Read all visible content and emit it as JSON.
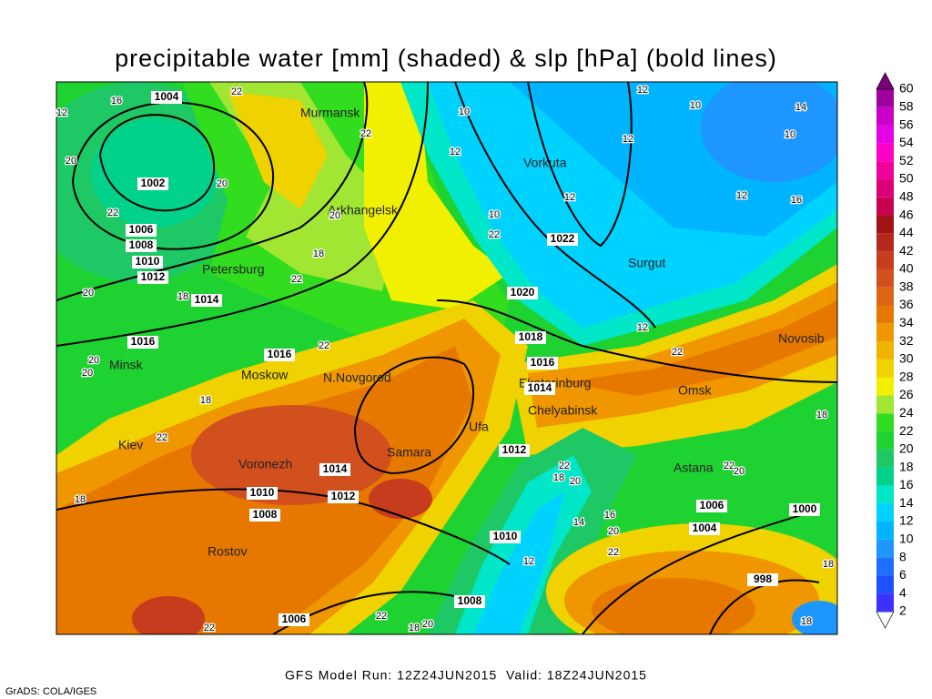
{
  "title": "precipitable water [mm] (shaded) & slp [hPa] (bold lines)",
  "footer": "GFS Model Run: 12Z24JUN2015  Valid: 18Z24JUN2015",
  "credit": "GrADS: COLA/IGES",
  "colorbar": {
    "levels": [
      2,
      4,
      6,
      8,
      10,
      12,
      14,
      16,
      18,
      20,
      22,
      24,
      26,
      28,
      30,
      32,
      34,
      36,
      38,
      40,
      42,
      44,
      46,
      48,
      50,
      52,
      54,
      56,
      58,
      60
    ],
    "colors": [
      "#ffffff",
      "#3c32ff",
      "#1e50ff",
      "#1e6eff",
      "#1e96ff",
      "#00b4ff",
      "#00d2ff",
      "#00e6c8",
      "#00d28c",
      "#1ec864",
      "#1ed232",
      "#32dc1e",
      "#a0e632",
      "#f0f000",
      "#f0d200",
      "#f0b400",
      "#f09600",
      "#e67800",
      "#dc6414",
      "#d2501e",
      "#c83c1e",
      "#b4281e",
      "#a01414",
      "#c80050",
      "#dc0078",
      "#f0009b",
      "#ff00c8",
      "#e600e6",
      "#c800c8",
      "#a000a0",
      "#780078"
    ]
  },
  "cities": [
    "Murmansk",
    "Arkhangelsk",
    "Vorkuta",
    "Surgut",
    "Petersburg",
    "Minsk",
    "Moskow",
    "N.Novgorod",
    "Ekaterinburg",
    "Chelyabinsk",
    "Omsk",
    "Novosib",
    "Kiev",
    "Voronezh",
    "Samara",
    "Ufa",
    "Astana",
    "Rostov"
  ],
  "isobar_labels": [
    1004,
    1002,
    1006,
    1008,
    1010,
    1012,
    1014,
    1016,
    1016,
    1022,
    1020,
    1018,
    1016,
    1014,
    1012,
    1014,
    1012,
    1010,
    1008,
    1010,
    1008,
    1006,
    1006,
    1004,
    1000,
    998
  ],
  "contour_labels": [
    12,
    16,
    22,
    20,
    22,
    20,
    22,
    10,
    12,
    12,
    10,
    14,
    10,
    12,
    12,
    12,
    16,
    10,
    22,
    20,
    18,
    22,
    20,
    18,
    20,
    20,
    22,
    18,
    22,
    12,
    22,
    18,
    22,
    18,
    20,
    22,
    20,
    18,
    16,
    14,
    20,
    22,
    12,
    18,
    22,
    18,
    20,
    18,
    22
  ]
}
